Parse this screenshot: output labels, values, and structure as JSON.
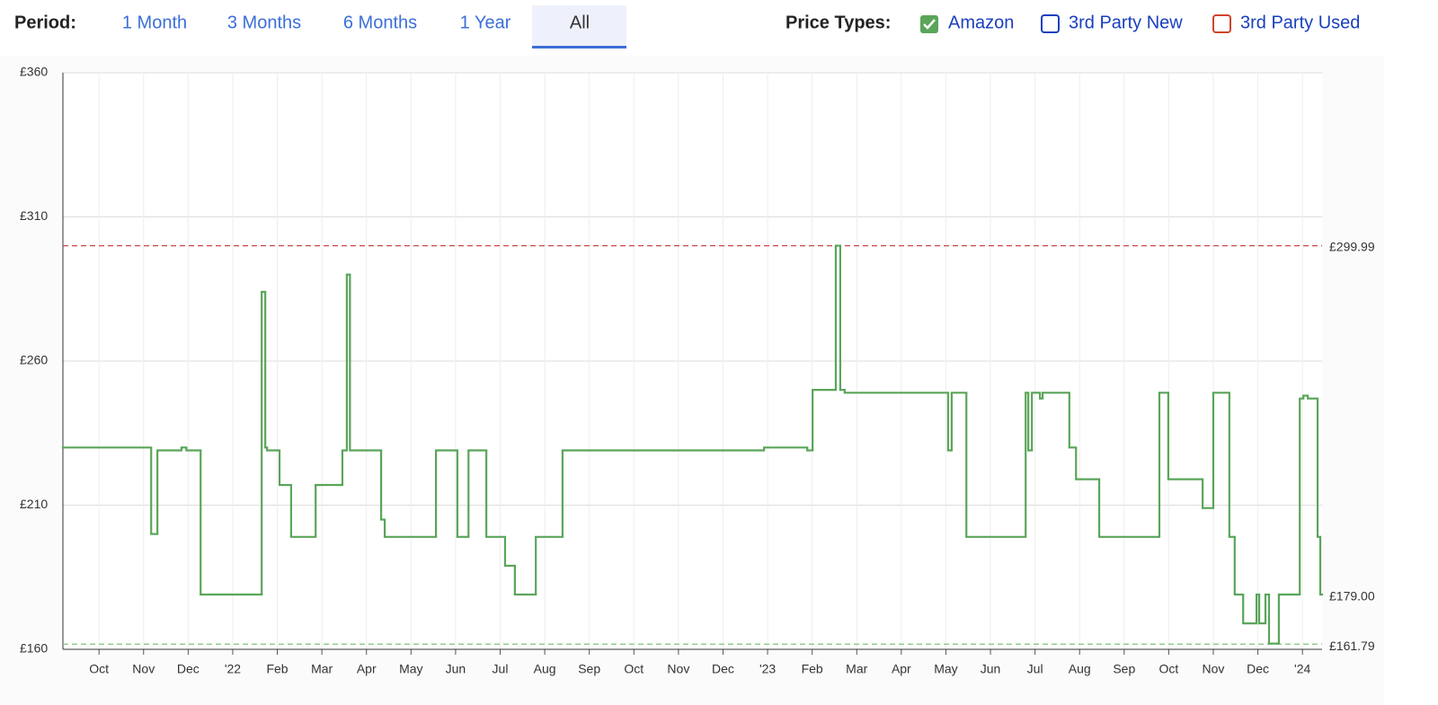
{
  "controls": {
    "period_label": "Period:",
    "periods": [
      "1 Month",
      "3 Months",
      "6 Months",
      "1 Year",
      "All"
    ],
    "selected_period": 4,
    "price_types_label": "Price Types:",
    "price_types": [
      {
        "name": "3rd Party New",
        "color": "#1a3fbf"
      },
      {
        "name": "3rd Party Used",
        "color": "#d0442a"
      }
    ]
  },
  "chart_data": {
    "type": "line",
    "step": true,
    "grid": true,
    "xlim": [
      -0.81,
      27.44
    ],
    "xticks": [
      {
        "value": 0,
        "label": "Oct"
      },
      {
        "value": 1,
        "label": "Nov"
      },
      {
        "value": 2,
        "label": "Dec"
      },
      {
        "value": 3,
        "label": "'22"
      },
      {
        "value": 4,
        "label": "Feb"
      },
      {
        "value": 5,
        "label": "Mar"
      },
      {
        "value": 6,
        "label": "Apr"
      },
      {
        "value": 7,
        "label": "May"
      },
      {
        "value": 8,
        "label": "Jun"
      },
      {
        "value": 9,
        "label": "Jul"
      },
      {
        "value": 10,
        "label": "Aug"
      },
      {
        "value": 11,
        "label": "Sep"
      },
      {
        "value": 12,
        "label": "Oct"
      },
      {
        "value": 13,
        "label": "Nov"
      },
      {
        "value": 14,
        "label": "Dec"
      },
      {
        "value": 15,
        "label": "'23"
      },
      {
        "value": 16,
        "label": "Feb"
      },
      {
        "value": 17,
        "label": "Mar"
      },
      {
        "value": 18,
        "label": "Apr"
      },
      {
        "value": 19,
        "label": "May"
      },
      {
        "value": 20,
        "label": "Jun"
      },
      {
        "value": 21,
        "label": "Jul"
      },
      {
        "value": 22,
        "label": "Aug"
      },
      {
        "value": 23,
        "label": "Sep"
      },
      {
        "value": 24,
        "label": "Oct"
      },
      {
        "value": 25,
        "label": "Nov"
      },
      {
        "value": 26,
        "label": "Dec"
      },
      {
        "value": 27,
        "label": "'24"
      }
    ],
    "ylim": [
      160,
      360
    ],
    "yticks": [
      {
        "value": 160,
        "label": "£160"
      },
      {
        "value": 210,
        "label": "£210"
      },
      {
        "value": 260,
        "label": "£260"
      },
      {
        "value": 310,
        "label": "£310"
      },
      {
        "value": 360,
        "label": "£360"
      }
    ],
    "x": [
      -0.81,
      1.17,
      1.31,
      1.85,
      1.96,
      2.28,
      3.65,
      3.73,
      3.77,
      4.05,
      4.31,
      4.86,
      5.46,
      5.56,
      5.63,
      6.33,
      6.41,
      7.56,
      8.04,
      8.29,
      8.69,
      9.11,
      9.33,
      9.8,
      10.4,
      14.92,
      15.89,
      16.01,
      16.53,
      16.63,
      16.73,
      19.05,
      19.13,
      19.46,
      20.79,
      20.85,
      20.93,
      21.11,
      21.17,
      21.77,
      21.92,
      22.44,
      23.79,
      23.99,
      24.76,
      25.0,
      25.36,
      25.48,
      25.67,
      25.97,
      26.03,
      26.17,
      26.25,
      26.47,
      26.94,
      27.02,
      27.12,
      27.34,
      27.4
    ],
    "series": [
      {
        "name": "Amazon",
        "color": "#5aa55a",
        "values": [
          230,
          200,
          229,
          230,
          229,
          179,
          284,
          230,
          229,
          217,
          199,
          217,
          229,
          290,
          229,
          205,
          199,
          229,
          199,
          229,
          199,
          189,
          179,
          199,
          229,
          230,
          229,
          250,
          300,
          250,
          249,
          229,
          249,
          199,
          249,
          229,
          249,
          247,
          249,
          230,
          219,
          199,
          249,
          219,
          209,
          249,
          199,
          179,
          169,
          179,
          169,
          179,
          162,
          179,
          247,
          248,
          247,
          199,
          179
        ]
      }
    ],
    "reference_lines": [
      {
        "value": 299.99,
        "label": "£299.99",
        "color": "#c94a4a"
      },
      {
        "value": 161.79,
        "label": "£161.79",
        "color": "#7cc47c"
      }
    ],
    "current": {
      "value": 179,
      "label": "£179.00",
      "color": "#5aa55a"
    }
  }
}
